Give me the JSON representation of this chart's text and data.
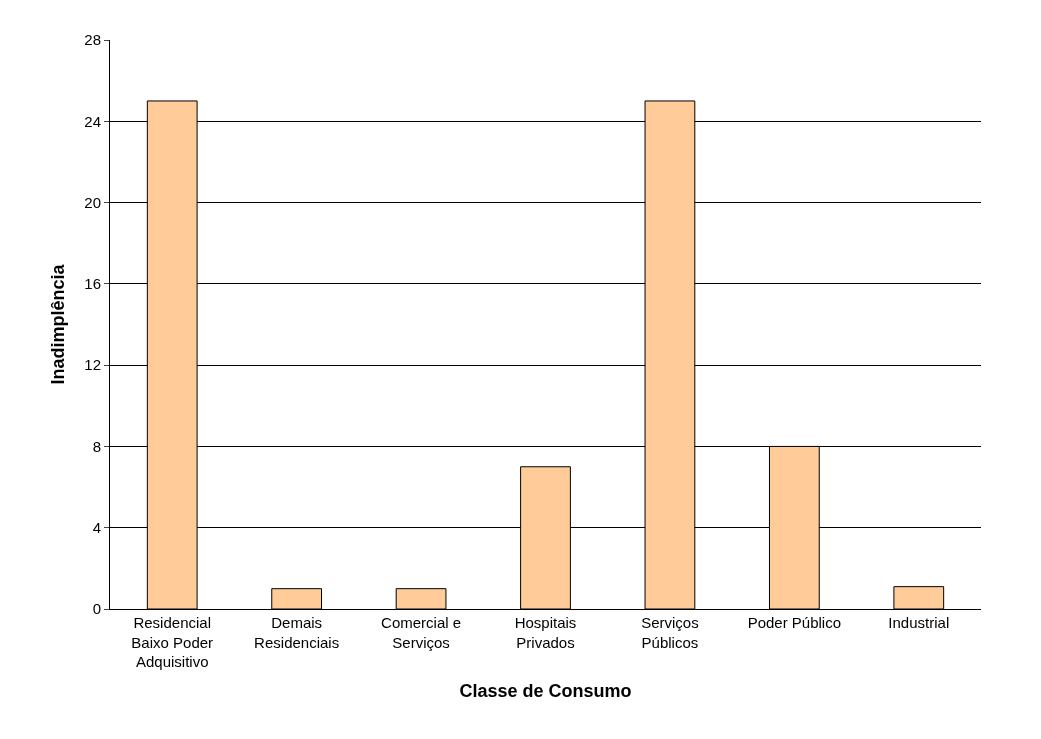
{
  "chart_data": {
    "type": "bar",
    "xlabel": "Classe de Consumo",
    "ylabel": "Inadimplência",
    "categories": [
      "Residencial Baixo Poder Adquisitivo",
      "Demais Residenciais",
      "Comercial e Serviços",
      "Hospitais Privados",
      "Serviços Públicos",
      "Poder Público",
      "Industrial"
    ],
    "values": [
      25,
      1,
      1,
      7,
      25,
      8,
      1.1
    ],
    "color": "#ffcc99",
    "ylim": [
      0,
      28
    ],
    "yticks": [
      0,
      4,
      8,
      12,
      16,
      20,
      24,
      28
    ],
    "grid": "y"
  }
}
